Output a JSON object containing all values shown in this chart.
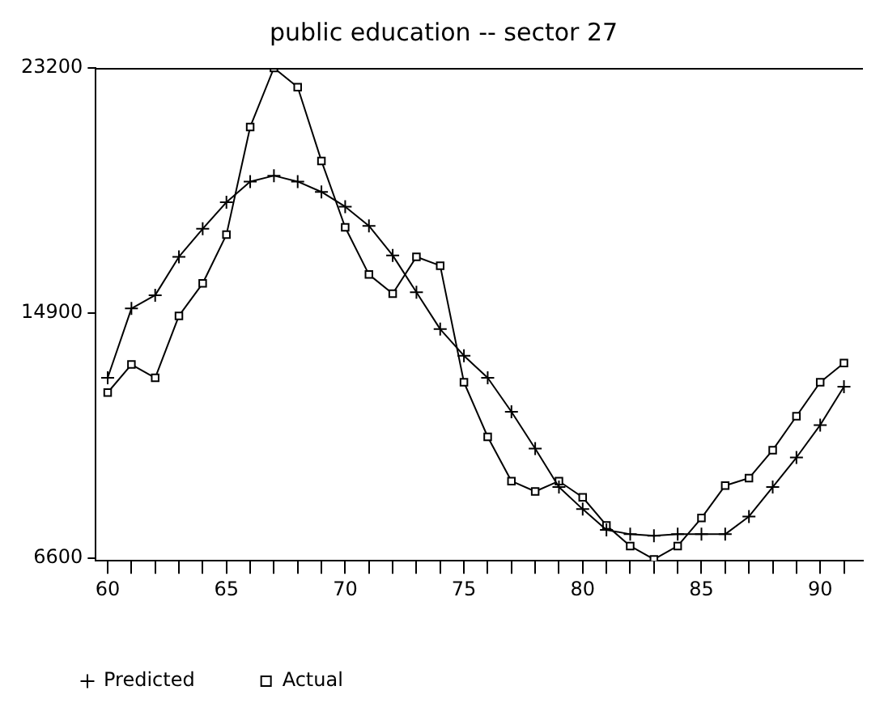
{
  "chart_data": {
    "type": "line",
    "title": "public education -- sector 27",
    "x": [
      60,
      61,
      62,
      63,
      64,
      65,
      66,
      67,
      68,
      69,
      70,
      71,
      72,
      73,
      74,
      75,
      76,
      77,
      78,
      79,
      80,
      81,
      82,
      83,
      84,
      85,
      86,
      87,
      88,
      89,
      90,
      91
    ],
    "series": [
      {
        "name": "Predicted",
        "color": "#000000",
        "marker": "cross",
        "values": [
          12700,
          15050,
          15500,
          16800,
          17750,
          18650,
          19350,
          19550,
          19350,
          19000,
          18500,
          17850,
          16850,
          15600,
          14350,
          13450,
          12700,
          11550,
          10300,
          9000,
          8250,
          7550,
          7400,
          7350,
          7400,
          7400,
          7400,
          8000,
          9000,
          10000,
          11100,
          12400
        ]
      },
      {
        "name": "Actual",
        "color": "#000000",
        "marker": "square",
        "values": [
          12200,
          13150,
          12700,
          14800,
          15900,
          17550,
          21200,
          23200,
          22550,
          20050,
          17800,
          16200,
          15550,
          16800,
          16500,
          12550,
          10700,
          9200,
          8850,
          9200,
          8650,
          7700,
          7000,
          6550,
          7000,
          7950,
          9050,
          9300,
          10250,
          11400,
          12550,
          13200
        ]
      }
    ],
    "xlim": [
      59.5,
      91.8
    ],
    "xticks": [
      60,
      {
        "value": 61,
        "label": null
      },
      {
        "value": 62,
        "label": null
      },
      {
        "value": 63,
        "label": null
      },
      {
        "value": 64,
        "label": null
      },
      65,
      {
        "value": 66,
        "label": null
      },
      {
        "value": 67,
        "label": null
      },
      {
        "value": 68,
        "label": null
      },
      {
        "value": 69,
        "label": null
      },
      70,
      {
        "value": 71,
        "label": null
      },
      {
        "value": 72,
        "label": null
      },
      {
        "value": 73,
        "label": null
      },
      {
        "value": 74,
        "label": null
      },
      75,
      {
        "value": 76,
        "label": null
      },
      {
        "value": 77,
        "label": null
      },
      {
        "value": 78,
        "label": null
      },
      {
        "value": 79,
        "label": null
      },
      80,
      {
        "value": 81,
        "label": null
      },
      {
        "value": 82,
        "label": null
      },
      {
        "value": 83,
        "label": null
      },
      {
        "value": 84,
        "label": null
      },
      85,
      {
        "value": 86,
        "label": null
      },
      {
        "value": 87,
        "label": null
      },
      {
        "value": 88,
        "label": null
      },
      {
        "value": 89,
        "label": null
      },
      90,
      {
        "value": 91,
        "label": null
      }
    ],
    "ylim": [
      6500,
      23200
    ],
    "yticks": [
      6600,
      14900,
      23200
    ],
    "grid": false,
    "legend": "bottom left",
    "line_style": "solid"
  }
}
